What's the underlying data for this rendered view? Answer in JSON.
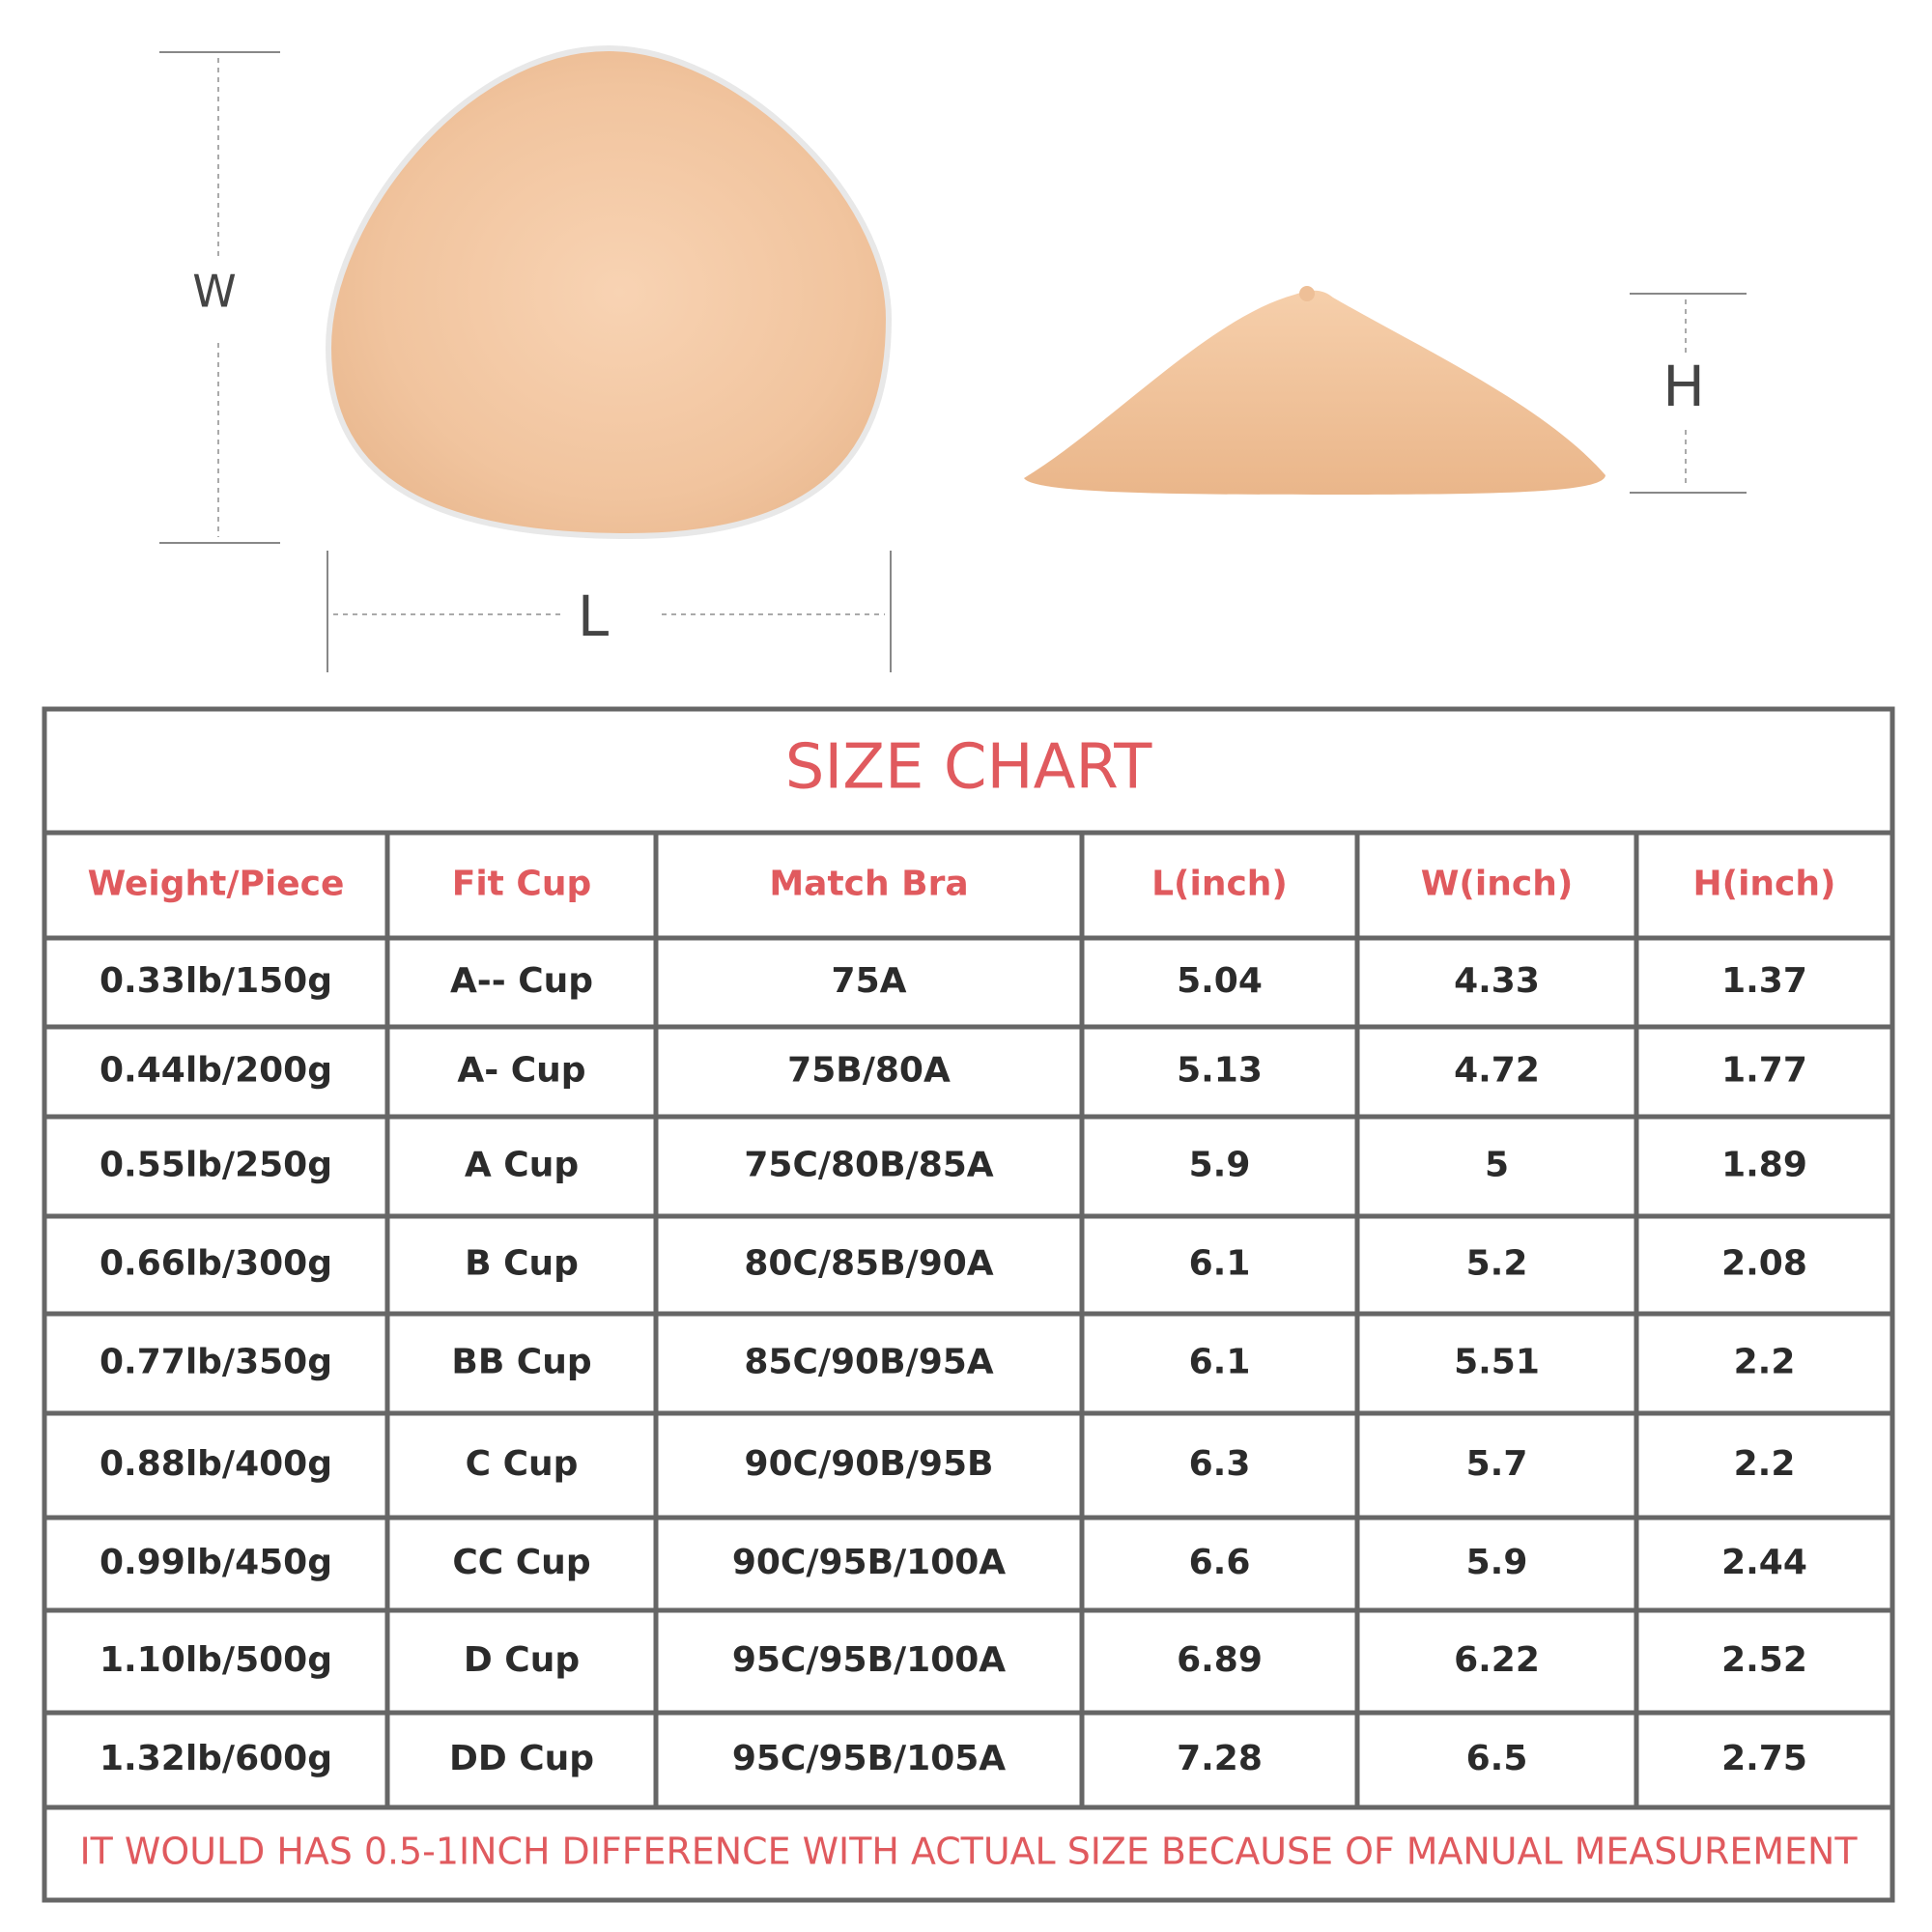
{
  "diagram": {
    "width_label": "W",
    "length_label": "L",
    "height_label": "H"
  },
  "table": {
    "title": "SIZE CHART",
    "headers": [
      "Weight/Piece",
      "Fit Cup",
      "Match Bra",
      "L(inch)",
      "W(inch)",
      "H(inch)"
    ],
    "rows": [
      [
        "0.33lb/150g",
        "A-- Cup",
        "75A",
        "5.04",
        "4.33",
        "1.37"
      ],
      [
        "0.44lb/200g",
        "A- Cup",
        "75B/80A",
        "5.13",
        "4.72",
        "1.77"
      ],
      [
        "0.55lb/250g",
        "A Cup",
        "75C/80B/85A",
        "5.9",
        "5",
        "1.89"
      ],
      [
        "0.66lb/300g",
        "B Cup",
        "80C/85B/90A",
        "6.1",
        "5.2",
        "2.08"
      ],
      [
        "0.77lb/350g",
        "BB Cup",
        "85C/90B/95A",
        "6.1",
        "5.51",
        "2.2"
      ],
      [
        "0.88lb/400g",
        "C Cup",
        "90C/90B/95B",
        "6.3",
        "5.7",
        "2.2"
      ],
      [
        "0.99lb/450g",
        "CC Cup",
        "90C/95B/100A",
        "6.6",
        "5.9",
        "2.44"
      ],
      [
        "1.10lb/500g",
        "D Cup",
        "95C/95B/100A",
        "6.89",
        "6.22",
        "2.52"
      ],
      [
        "1.32lb/600g",
        "DD Cup",
        "95C/95B/105A",
        "7.28",
        "6.5",
        "2.75"
      ]
    ],
    "note": "IT WOULD HAS 0.5-1INCH DIFFERENCE WITH ACTUAL SIZE BECAUSE OF MANUAL MEASUREMENT"
  }
}
